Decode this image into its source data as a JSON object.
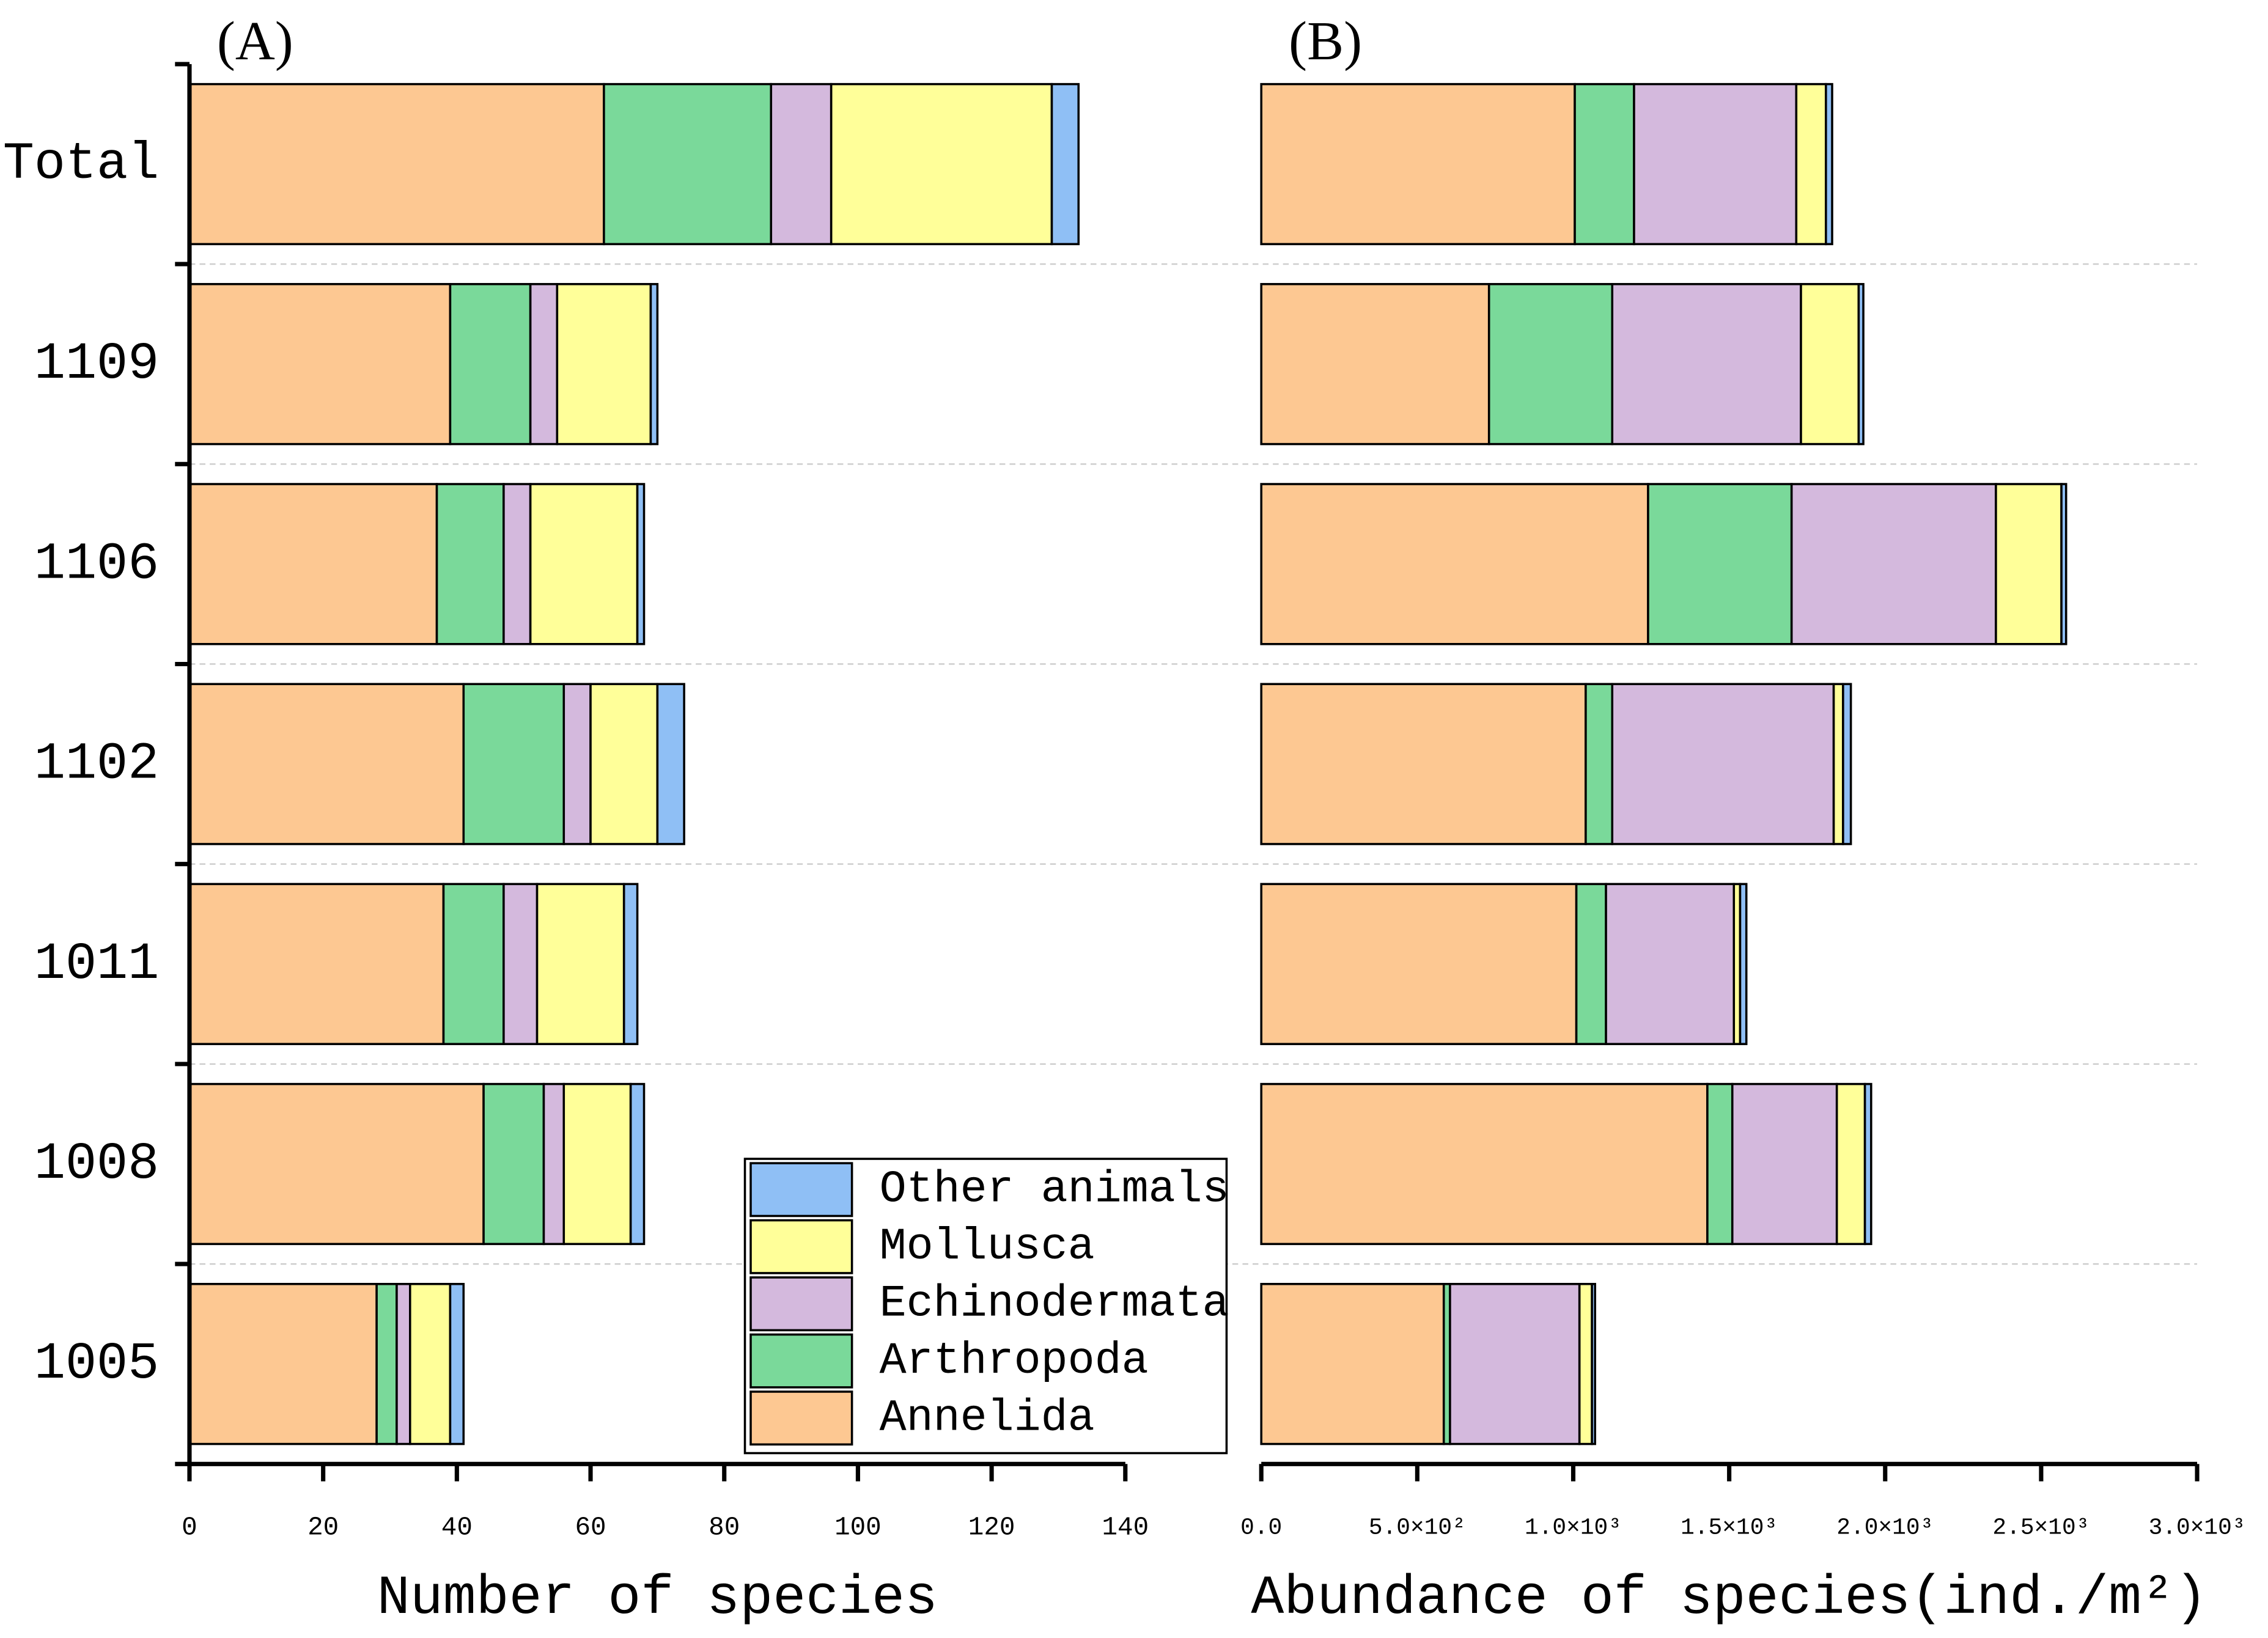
{
  "chart_data": [
    {
      "type": "bar",
      "orientation": "horizontal",
      "stacked": true,
      "title": "(A)",
      "x_label": "Number of species",
      "categories": [
        "Total",
        "1109",
        "1106",
        "1102",
        "1011",
        "1008",
        "1005"
      ],
      "series": [
        {
          "name": "Annelida",
          "color": "#fdc892",
          "values": [
            62,
            39,
            37,
            41,
            38,
            44,
            28
          ]
        },
        {
          "name": "Arthropoda",
          "color": "#7ad99a",
          "values": [
            25,
            12,
            10,
            15,
            9,
            9,
            3
          ]
        },
        {
          "name": "Echinodermata",
          "color": "#d4b9dd",
          "values": [
            9,
            4,
            4,
            4,
            5,
            3,
            2
          ]
        },
        {
          "name": "Mollusca",
          "color": "#ffff99",
          "values": [
            33,
            14,
            16,
            10,
            13,
            10,
            6
          ]
        },
        {
          "name": "Other animals",
          "color": "#8fbff5",
          "values": [
            4,
            1,
            1,
            4,
            2,
            2,
            2
          ]
        }
      ],
      "xlim": [
        0,
        140
      ],
      "xticks": [
        0,
        20,
        40,
        60,
        80,
        100,
        120,
        140
      ],
      "legend": "lower right"
    },
    {
      "type": "bar",
      "orientation": "horizontal",
      "stacked": true,
      "title": "(B)",
      "x_label": "Abundance of species(ind./m²)",
      "categories": [
        null,
        null,
        null,
        null,
        null,
        null,
        null
      ],
      "series": [
        {
          "name": "Annelida",
          "color": "#fdc892",
          "values": [
            1005,
            730,
            1240,
            1040,
            1010,
            1430,
            585
          ]
        },
        {
          "name": "Arthropoda",
          "color": "#7ad99a",
          "values": [
            190,
            395,
            460,
            85,
            95,
            80,
            20
          ]
        },
        {
          "name": "Echinodermata",
          "color": "#d4b9dd",
          "values": [
            520,
            605,
            655,
            710,
            410,
            335,
            415
          ]
        },
        {
          "name": "Mollusca",
          "color": "#ffff99",
          "values": [
            95,
            185,
            210,
            30,
            20,
            90,
            40
          ]
        },
        {
          "name": "Other animals",
          "color": "#8fbff5",
          "values": [
            20,
            15,
            15,
            25,
            20,
            20,
            10
          ]
        }
      ],
      "xlim": [
        0,
        3000
      ],
      "xticks": [
        {
          "value": 0,
          "label": "0.0"
        },
        {
          "value": 500,
          "label": "5.0×10²"
        },
        {
          "value": 1000,
          "label": "1.0×10³"
        },
        {
          "value": 1500,
          "label": "1.5×10³"
        },
        {
          "value": 2000,
          "label": "2.0×10³"
        },
        {
          "value": 2500,
          "label": "2.5×10³"
        },
        {
          "value": 3000,
          "label": "3.0×10³"
        }
      ]
    }
  ]
}
